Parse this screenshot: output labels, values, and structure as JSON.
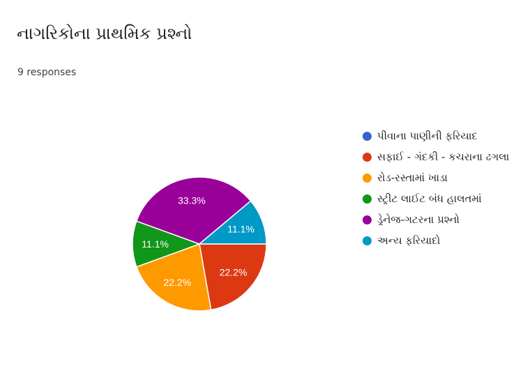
{
  "header": {
    "title": "નાગરિકોના પ્રાથમિક પ્રશ્નો",
    "responses": "9 responses"
  },
  "chart_data": {
    "type": "pie",
    "total": 9,
    "categories": [
      "પીવાના પાણીની ફરિયાદ",
      "સફાઈ - ગંદકી - કચરાના ઢગલા",
      "રોડ-રસ્તામાં ખાડા",
      "સ્ટ્રીટ લાઈટ બંધ હાલતમાં",
      "ડ્રેનેજ-ગટરના પ્રશ્નો",
      "અન્ય ફરિયાદો"
    ],
    "values": [
      0,
      2,
      2,
      1,
      3,
      1
    ],
    "labels": [
      "",
      "22.2%",
      "22.2%",
      "11.1%",
      "33.3%",
      "11.1%"
    ],
    "colors": [
      "#3366cc",
      "#dc3912",
      "#ff9900",
      "#109618",
      "#990099",
      "#0099c6"
    ],
    "legend_position": "right"
  }
}
